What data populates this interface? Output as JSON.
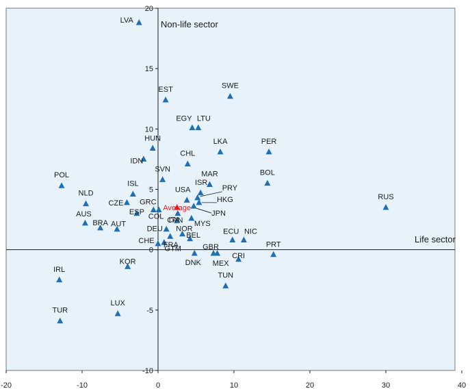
{
  "chart_data": {
    "type": "scatter",
    "title": "",
    "xlabel": "Life sector",
    "ylabel": "Non-life sector",
    "xlim": [
      -20,
      40
    ],
    "ylim": [
      -10,
      20
    ],
    "x_ticks": [
      -20,
      -10,
      0,
      10,
      20,
      30,
      40
    ],
    "y_ticks": [
      -10,
      -5,
      0,
      5,
      10,
      15,
      20
    ],
    "grid": false,
    "colors": {
      "marker": "#1f6fb5",
      "highlight": "#e0201b",
      "background": "#e8f2fb"
    },
    "points": [
      {
        "label": "LVA",
        "x": -2.5,
        "y": 18.8
      },
      {
        "label": "EST",
        "x": 1.0,
        "y": 12.4
      },
      {
        "label": "SWE",
        "x": 9.5,
        "y": 12.7
      },
      {
        "label": "EGY",
        "x": 4.5,
        "y": 10.1
      },
      {
        "label": "LTU",
        "x": 5.3,
        "y": 10.1
      },
      {
        "label": "PER",
        "x": 14.6,
        "y": 8.1
      },
      {
        "label": "LKA",
        "x": 8.2,
        "y": 8.1
      },
      {
        "label": "HUN",
        "x": -0.7,
        "y": 8.4
      },
      {
        "label": "IDN",
        "x": -1.9,
        "y": 7.5
      },
      {
        "label": "CHL",
        "x": 3.9,
        "y": 7.1
      },
      {
        "label": "SVN",
        "x": 0.6,
        "y": 5.8
      },
      {
        "label": "BOL",
        "x": 14.4,
        "y": 5.5
      },
      {
        "label": "MAR",
        "x": 6.8,
        "y": 5.4
      },
      {
        "label": "POL",
        "x": -12.7,
        "y": 5.3
      },
      {
        "label": "ISL",
        "x": -3.3,
        "y": 4.6
      },
      {
        "label": "ISR",
        "x": 5.6,
        "y": 4.7
      },
      {
        "label": "USA",
        "x": 3.8,
        "y": 4.1
      },
      {
        "label": "PRY",
        "x": 5.2,
        "y": 4.3
      },
      {
        "label": "HKG",
        "x": 5.4,
        "y": 3.9
      },
      {
        "label": "JPN",
        "x": 4.7,
        "y": 3.6
      },
      {
        "label": "NLD",
        "x": -9.5,
        "y": 3.8
      },
      {
        "label": "CZE",
        "x": -4.1,
        "y": 3.9
      },
      {
        "label": "GRC",
        "x": -0.6,
        "y": 3.3
      },
      {
        "label": "ESP",
        "x": -2.8,
        "y": 3.0
      },
      {
        "label": "CAN",
        "x": 2.6,
        "y": 3.0
      },
      {
        "label": "RUS",
        "x": 30.0,
        "y": 3.5
      },
      {
        "label": "AUS",
        "x": -9.6,
        "y": 2.2
      },
      {
        "label": "COL",
        "x": 0.1,
        "y": 3.3
      },
      {
        "label": "ITA",
        "x": 2.5,
        "y": 2.4
      },
      {
        "label": "MYS",
        "x": 4.4,
        "y": 2.6
      },
      {
        "label": "BRA",
        "x": -7.6,
        "y": 1.8
      },
      {
        "label": "AUT",
        "x": -5.4,
        "y": 1.7
      },
      {
        "label": "DEU",
        "x": 1.1,
        "y": 1.7
      },
      {
        "label": "NOR",
        "x": 3.2,
        "y": 1.3
      },
      {
        "label": "BEL",
        "x": 4.2,
        "y": 0.9
      },
      {
        "label": "CHE",
        "x": 0.0,
        "y": 0.5
      },
      {
        "label": "FRA",
        "x": 0.8,
        "y": 0.6
      },
      {
        "label": "GTM",
        "x": 1.6,
        "y": 1.1
      },
      {
        "label": "ECU",
        "x": 9.8,
        "y": 0.8
      },
      {
        "label": "NIC",
        "x": 11.3,
        "y": 0.8
      },
      {
        "label": "PRT",
        "x": 15.2,
        "y": -0.4
      },
      {
        "label": "CRI",
        "x": 10.6,
        "y": -0.8
      },
      {
        "label": "GBR",
        "x": 7.3,
        "y": -0.3
      },
      {
        "label": "MEX",
        "x": 7.8,
        "y": -0.3
      },
      {
        "label": "DNK",
        "x": 4.8,
        "y": -0.3
      },
      {
        "label": "KOR",
        "x": -4.0,
        "y": -1.4
      },
      {
        "label": "IRL",
        "x": -13.0,
        "y": -2.5
      },
      {
        "label": "TUN",
        "x": 8.9,
        "y": -3.0
      },
      {
        "label": "LUX",
        "x": -5.3,
        "y": -5.3
      },
      {
        "label": "TUR",
        "x": -12.9,
        "y": -5.9
      },
      {
        "label": "Average",
        "x": 2.5,
        "y": 3.5,
        "highlight": true
      }
    ]
  }
}
